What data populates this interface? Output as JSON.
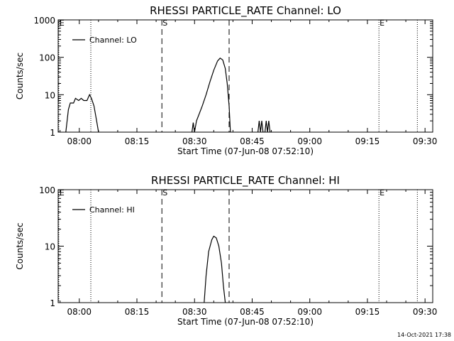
{
  "chart_data": [
    {
      "type": "line",
      "title": "RHESSI PARTICLE_RATE Channel: LO",
      "xlabel": "Start Time (07-Jun-08 07:52:10)",
      "ylabel": "Counts/sec",
      "yscale": "log",
      "xlim": [
        "07:54:30",
        "09:32:00"
      ],
      "ylim": [
        1,
        1000
      ],
      "x_ticks": [
        "08:00",
        "08:15",
        "08:30",
        "08:45",
        "09:00",
        "09:15",
        "09:30"
      ],
      "y_ticks": [
        "1",
        "10",
        "100",
        "1000"
      ],
      "legend": {
        "label": "Channel: LO",
        "position": "top-left"
      },
      "markers": [
        {
          "label": "E",
          "time": "07:54:40",
          "style": "dotted"
        },
        {
          "time": "08:03:00",
          "style": "dotted"
        },
        {
          "label": "S",
          "time": "08:21:30",
          "style": "dashed"
        },
        {
          "time": "08:39:00",
          "style": "dashed"
        },
        {
          "label": "E",
          "time": "09:18:00",
          "style": "dotted"
        },
        {
          "time": "09:28:00",
          "style": "dotted"
        }
      ],
      "series": [
        {
          "name": "Channel: LO",
          "segments": [
            [
              [
                "07:56:30",
                1
              ],
              [
                "07:57:10",
                4
              ],
              [
                "07:57:40",
                6
              ],
              [
                "07:58:30",
                6
              ],
              [
                "07:59:00",
                8
              ],
              [
                "07:59:50",
                7
              ],
              [
                "08:00:30",
                8
              ],
              [
                "08:01:10",
                7
              ],
              [
                "08:02:00",
                7
              ],
              [
                "08:02:40",
                10
              ],
              [
                "08:03:10",
                8
              ],
              [
                "08:03:50",
                5
              ],
              [
                "08:04:30",
                2
              ],
              [
                "08:05:00",
                1
              ]
            ],
            [
              [
                "08:29:20",
                1
              ],
              [
                "08:29:40",
                1.8
              ],
              [
                "08:30:00",
                1
              ],
              [
                "08:30:30",
                2
              ],
              [
                "08:31:10",
                3
              ],
              [
                "08:32:00",
                5
              ],
              [
                "08:33:00",
                10
              ],
              [
                "08:34:00",
                22
              ],
              [
                "08:35:00",
                45
              ],
              [
                "08:36:00",
                80
              ],
              [
                "08:36:40",
                95
              ],
              [
                "08:37:20",
                85
              ],
              [
                "08:38:00",
                50
              ],
              [
                "08:38:30",
                20
              ],
              [
                "08:39:00",
                5
              ],
              [
                "08:39:20",
                1
              ]
            ],
            [
              [
                "08:46:30",
                1
              ],
              [
                "08:46:50",
                2
              ],
              [
                "08:47:10",
                1
              ],
              [
                "08:47:30",
                2
              ],
              [
                "08:47:50",
                1
              ]
            ],
            [
              [
                "08:48:20",
                1
              ],
              [
                "08:48:40",
                2
              ],
              [
                "08:49:00",
                1
              ],
              [
                "08:49:20",
                2
              ],
              [
                "08:49:40",
                1
              ]
            ]
          ]
        }
      ]
    },
    {
      "type": "line",
      "title": "RHESSI PARTICLE_RATE Channel: HI",
      "xlabel": "Start Time (07-Jun-08 07:52:10)",
      "ylabel": "Counts/sec",
      "yscale": "log",
      "xlim": [
        "07:54:30",
        "09:32:00"
      ],
      "ylim": [
        1,
        100
      ],
      "x_ticks": [
        "08:00",
        "08:15",
        "08:30",
        "08:45",
        "09:00",
        "09:15",
        "09:30"
      ],
      "y_ticks": [
        "1",
        "10",
        "100"
      ],
      "legend": {
        "label": "Channel: HI",
        "position": "top-left"
      },
      "markers": [
        {
          "label": "E",
          "time": "07:54:40",
          "style": "dotted"
        },
        {
          "time": "08:03:00",
          "style": "dotted"
        },
        {
          "label": "S",
          "time": "08:21:30",
          "style": "dashed"
        },
        {
          "time": "08:39:00",
          "style": "dashed"
        },
        {
          "label": "E",
          "time": "09:18:00",
          "style": "dotted"
        },
        {
          "time": "09:28:00",
          "style": "dotted"
        }
      ],
      "series": [
        {
          "name": "Channel: HI",
          "segments": [
            [
              [
                "08:32:30",
                1
              ],
              [
                "08:33:00",
                3
              ],
              [
                "08:33:40",
                8
              ],
              [
                "08:34:30",
                13
              ],
              [
                "08:35:00",
                15
              ],
              [
                "08:35:40",
                14
              ],
              [
                "08:36:20",
                10
              ],
              [
                "08:37:00",
                5
              ],
              [
                "08:37:30",
                2
              ],
              [
                "08:38:00",
                1
              ]
            ]
          ]
        }
      ]
    }
  ],
  "timestamp": "14-Oct-2021 17:38"
}
